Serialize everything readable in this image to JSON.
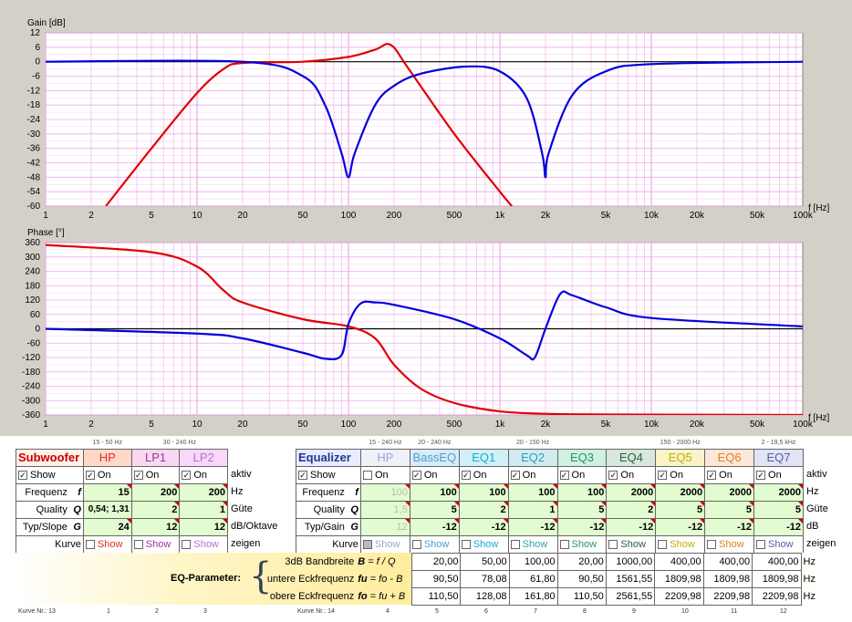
{
  "gain_chart": {
    "ylabel": "Gain [dB]",
    "xlabel": "f [Hz]",
    "yticks": [
      "12",
      "6",
      "0",
      "-6",
      "-12",
      "-18",
      "-24",
      "-30",
      "-36",
      "-42",
      "-48",
      "-54",
      "-60"
    ],
    "xticks": [
      "1",
      "2",
      "5",
      "10",
      "20",
      "50",
      "100",
      "200",
      "500",
      "1k",
      "2k",
      "5k",
      "10k",
      "20k",
      "50k",
      "100k"
    ]
  },
  "phase_chart": {
    "ylabel": "Phase [°]",
    "xlabel": "f [Hz]",
    "yticks": [
      "360",
      "300",
      "240",
      "180",
      "120",
      "60",
      "0",
      "-60",
      "-120",
      "-180",
      "-240",
      "-300",
      "-360"
    ],
    "xticks": [
      "1",
      "2",
      "5",
      "10",
      "20",
      "50",
      "100",
      "200",
      "500",
      "1k",
      "2k",
      "5k",
      "10k",
      "20k",
      "50k",
      "100k"
    ]
  },
  "chart_data": [
    {
      "type": "line",
      "title": "",
      "ylabel": "Gain [dB]",
      "xlabel": "f [Hz]",
      "x_scale": "log",
      "xlim": [
        1,
        100000
      ],
      "ylim": [
        -60,
        12
      ],
      "grid": true,
      "series": [
        {
          "color": "#e00000",
          "x": [
            2.5,
            5,
            10,
            15,
            20,
            50,
            100,
            150,
            190,
            250,
            500,
            1000,
            1200
          ],
          "y": [
            -60,
            -36,
            -13,
            -3,
            -0.5,
            0,
            2,
            5,
            7,
            -3,
            -30,
            -54,
            -60
          ]
        },
        {
          "color": "#0000dd",
          "x": [
            1,
            20,
            50,
            70,
            90,
            100,
            110,
            150,
            200,
            300,
            600,
            1000,
            1500,
            1900,
            2000,
            2100,
            3000,
            5000,
            10000,
            100000
          ],
          "y": [
            0,
            0,
            -6,
            -18,
            -38,
            -48,
            -38,
            -18,
            -10,
            -5,
            -2,
            -4,
            -15,
            -38,
            -48,
            -38,
            -14,
            -4,
            -1,
            0
          ]
        }
      ]
    },
    {
      "type": "line",
      "title": "",
      "ylabel": "Phase [°]",
      "xlabel": "f [Hz]",
      "x_scale": "log",
      "xlim": [
        1,
        100000
      ],
      "ylim": [
        -360,
        360
      ],
      "grid": true,
      "series": [
        {
          "color": "#e00000",
          "x": [
            1,
            5,
            10,
            15,
            20,
            50,
            100,
            150,
            200,
            300,
            500,
            1000,
            2000,
            5000,
            100000
          ],
          "y": [
            350,
            320,
            260,
            160,
            110,
            40,
            10,
            -40,
            -150,
            -250,
            -310,
            -345,
            -355,
            -358,
            -360
          ]
        },
        {
          "color": "#0000dd",
          "x": [
            1,
            10,
            20,
            50,
            70,
            90,
            100,
            120,
            150,
            200,
            500,
            1000,
            1500,
            1700,
            2000,
            2500,
            3000,
            5000,
            10000,
            100000
          ],
          "y": [
            0,
            -20,
            -40,
            -100,
            -125,
            -110,
            20,
            105,
            110,
            100,
            40,
            -40,
            -110,
            -120,
            0,
            145,
            140,
            90,
            45,
            10
          ]
        }
      ]
    }
  ],
  "sub": {
    "title": "Subwoofer",
    "hp": "HP",
    "lp1": "LP1",
    "lp2": "LP2",
    "r_hp": "15 - 50 Hz",
    "r_lp": "30 - 240 Hz",
    "show": "Show",
    "on": "On",
    "aktiv": "aktiv",
    "frequenz": "Frequenz",
    "f": "f",
    "f_hp": "15",
    "f_lp1": "200",
    "f_lp2": "200",
    "hz": "Hz",
    "quality": "Quality",
    "q": "Q",
    "q_hp": "0,54; 1,31",
    "q_lp1": "2",
    "q_lp2": "1",
    "guete": "Güte",
    "typ": "Typ/Slope",
    "g": "G",
    "g_hp": "24",
    "g_lp1": "12",
    "g_lp2": "12",
    "unit_slope": "dB/Oktave",
    "kurve": "Kurve",
    "zeigen": "zeigen",
    "kurve_nr": "Kurve Nr.:",
    "kn_total": "13",
    "kn1": "1",
    "kn2": "2",
    "kn3": "3"
  },
  "eq": {
    "title": "Equalizer",
    "cols": [
      "HP",
      "BassEQ",
      "EQ1",
      "EQ2",
      "EQ3",
      "EQ4",
      "EQ5",
      "EQ6",
      "EQ7"
    ],
    "colors": [
      "#9aa6d8",
      "#4aa0d0",
      "#18a8d8",
      "#2ca0b8",
      "#1e9a60",
      "#2a6040",
      "#c0b000",
      "#e08020",
      "#5060a0"
    ],
    "ranges": [
      "15 - 240 Hz",
      "20 - 240 Hz",
      "20 - 150 Hz",
      "150 - 2000 Hz",
      "2 - 19,5 kHz"
    ],
    "show": "Show",
    "on": "On",
    "aktiv": "aktiv",
    "frequenz": "Frequenz",
    "f": "f",
    "freq": [
      "100",
      "100",
      "100",
      "100",
      "100",
      "2000",
      "2000",
      "2000",
      "2000"
    ],
    "hz": "Hz",
    "quality": "Quality",
    "q": "Q",
    "qual": [
      "1,5",
      "5",
      "2",
      "1",
      "5",
      "2",
      "5",
      "5",
      "5"
    ],
    "guete": "Güte",
    "typ": "Typ/Gain",
    "g": "G",
    "gain": [
      "12",
      "-12",
      "-12",
      "-12",
      "-12",
      "-12",
      "-12",
      "-12",
      "-12"
    ],
    "db": "dB",
    "kurve": "Kurve",
    "zeigen": "zeigen",
    "kurve_nr": "Kurve Nr.:",
    "kn_total": "14",
    "kn": [
      "4",
      "5",
      "6",
      "7",
      "8",
      "9",
      "10",
      "11",
      "12"
    ]
  },
  "eqparam": {
    "title": "EQ-Parameter:",
    "rows": [
      {
        "label": "3dB Bandbreite",
        "formula_var": "B",
        "formula": "= f / Q",
        "vals": [
          "20,00",
          "50,00",
          "100,00",
          "20,00",
          "1000,00",
          "400,00",
          "400,00",
          "400,00"
        ],
        "unit": "Hz"
      },
      {
        "label": "untere Eckfrequenz",
        "formula_var": "fu",
        "formula": "= fo - B",
        "vals": [
          "90,50",
          "78,08",
          "61,80",
          "90,50",
          "1561,55",
          "1809,98",
          "1809,98",
          "1809,98"
        ],
        "unit": "Hz"
      },
      {
        "label": "obere Eckfrequenz",
        "formula_var": "fo",
        "formula": "= fu + B",
        "vals": [
          "110,50",
          "128,08",
          "161,80",
          "110,50",
          "2561,55",
          "2209,98",
          "2209,98",
          "2209,98"
        ],
        "unit": "Hz"
      }
    ]
  }
}
